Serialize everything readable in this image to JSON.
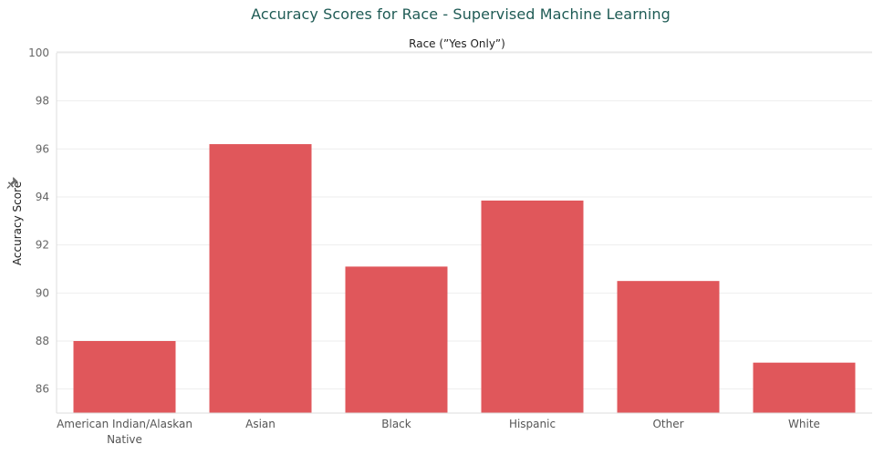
{
  "chart_data": {
    "type": "bar",
    "title": "Accuracy Scores for Race - Supervised Machine Learning",
    "header": "Race (”Yes Only”)",
    "ylabel": "Accuracy Score",
    "xlabel": "",
    "categories": [
      "American Indian/Alaskan\nNative",
      "Asian",
      "Black",
      "Hispanic",
      "Other",
      "White"
    ],
    "values": [
      88.0,
      96.2,
      91.1,
      93.85,
      90.5,
      87.1
    ],
    "ylim": [
      85,
      100
    ],
    "yticks": [
      "86",
      "88",
      "90",
      "92",
      "94",
      "96",
      "98",
      "100"
    ],
    "bar_color": "#e0575b",
    "grid": true,
    "legend": "none"
  },
  "icons": {
    "axis_pin": "pin-icon"
  },
  "colors": {
    "title": "#1f5b55",
    "bar": "#e0575b",
    "grid": "#eeeeee"
  }
}
